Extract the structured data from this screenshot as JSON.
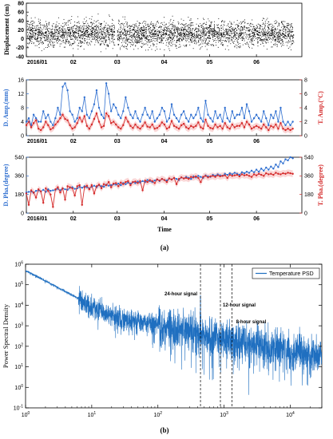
{
  "colors": {
    "blue": "#2f6fd0",
    "red": "#d42a2a",
    "psd": "#1f6fc0",
    "pink": "#f4a6a6"
  },
  "panel_labels": {
    "a": "(a)",
    "b": "(b)"
  },
  "chart_data": [
    {
      "type": "scatter",
      "ylabel": "Displacement (cm)",
      "xlabel": "",
      "ylim": [
        -40,
        80
      ],
      "yticks": [
        "-40",
        "-20",
        "0",
        "20",
        "40",
        "60",
        "80"
      ],
      "xticklabels": [
        "2016/01",
        "02",
        "03",
        "04",
        "05",
        "06"
      ],
      "xlim_days": [
        0,
        182
      ],
      "xtick_days": [
        0,
        31,
        60,
        91,
        121,
        152
      ],
      "series": [
        {
          "mean": 12,
          "spread_min": -40,
          "spread_max": 75,
          "color": "black",
          "n_points": 3500
        }
      ]
    },
    {
      "type": "line",
      "ylabel_left": "D. Amp.(mm)",
      "ylabel_right": "T. Amp.(°C)",
      "ylim_left": [
        0,
        16
      ],
      "ylim_right": [
        0,
        8
      ],
      "yticks_left": [
        "0",
        "4",
        "8",
        "12",
        "16"
      ],
      "yticks_right": [
        "0",
        "2",
        "4",
        "6",
        "8"
      ],
      "xticklabels": [
        "2016/01",
        "02",
        "03",
        "04",
        "05",
        "06"
      ],
      "x_days_range": [
        0,
        176
      ],
      "series": [
        {
          "axis": "left",
          "color": "blue",
          "values": [
            4,
            5,
            3,
            6,
            5,
            4,
            4,
            7,
            5,
            6,
            4,
            3,
            5,
            8,
            6,
            14,
            15,
            13,
            7,
            6,
            4,
            5,
            8,
            7,
            11,
            6,
            5,
            7,
            9,
            13,
            8,
            6,
            5,
            15,
            12,
            7,
            9,
            8,
            6,
            5,
            7,
            11,
            8,
            6,
            5,
            7,
            5,
            4,
            6,
            8,
            6,
            5,
            7,
            4,
            5,
            6,
            8,
            7,
            4,
            5,
            9,
            6,
            5,
            4,
            6,
            7,
            5,
            4,
            6,
            5,
            6,
            8,
            5,
            4,
            10,
            6,
            5,
            4,
            7,
            5,
            6,
            4,
            8,
            5,
            4,
            7,
            5,
            6,
            6,
            8,
            5,
            9,
            7,
            4,
            5,
            6,
            5,
            4,
            7,
            5,
            3,
            6,
            5,
            7,
            4,
            8,
            4,
            3,
            4,
            3,
            4
          ]
        },
        {
          "axis": "right",
          "color": "red",
          "values": [
            1.5,
            2,
            1.2,
            1.8,
            2.2,
            1,
            0.8,
            1.2,
            2,
            1.5,
            0.9,
            1.1,
            1.6,
            2,
            2.5,
            3,
            2.4,
            2.2,
            1.5,
            1,
            1.2,
            1.8,
            2.6,
            2,
            2.8,
            1.4,
            1,
            1.6,
            2.4,
            3.2,
            2,
            1.2,
            1.4,
            3.2,
            2.8,
            1.8,
            2,
            1.6,
            1.2,
            1,
            1.5,
            2.6,
            2,
            1.4,
            1.1,
            1.6,
            1.2,
            1,
            1.4,
            1.9,
            1.3,
            1.2,
            1.6,
            1,
            1.1,
            1.4,
            1.9,
            1.6,
            1,
            1.2,
            2.1,
            1.4,
            1.2,
            1,
            1.5,
            1.7,
            1.2,
            1,
            1.4,
            1.2,
            1.4,
            1.9,
            1.2,
            1,
            2.3,
            1.4,
            1.1,
            1,
            1.6,
            1.2,
            1.4,
            1,
            1.8,
            1.2,
            1,
            1.6,
            1.2,
            1.4,
            1.4,
            1.8,
            1.2,
            2,
            1.6,
            1,
            1.2,
            1.4,
            1.2,
            1,
            1.6,
            1.2,
            0.8,
            1.4,
            1.2,
            1.6,
            1,
            1.8,
            1,
            0.8,
            1,
            0.8,
            1
          ]
        }
      ]
    },
    {
      "type": "line",
      "ylabel_left": "D. Pha.(degree)",
      "ylabel_right": "T. Pha.(degree)",
      "xlabel": "Time",
      "ylim_left": [
        0,
        540
      ],
      "ylim_right": [
        0,
        540
      ],
      "yticks_left": [
        "0",
        "180",
        "360",
        "540"
      ],
      "yticks_right": [
        "0",
        "180",
        "360",
        "540"
      ],
      "xticklabels": [
        "2016/01",
        "02",
        "03",
        "04",
        "05",
        "06"
      ],
      "x_days_range": [
        0,
        176
      ],
      "series": [
        {
          "axis": "left",
          "color": "blue",
          "values": [
            200,
            205,
            210,
            195,
            215,
            220,
            210,
            225,
            205,
            230,
            215,
            220,
            225,
            235,
            220,
            240,
            230,
            225,
            245,
            250,
            235,
            240,
            255,
            245,
            260,
            250,
            240,
            255,
            265,
            250,
            270,
            260,
            255,
            275,
            265,
            270,
            280,
            275,
            285,
            270,
            290,
            280,
            295,
            285,
            300,
            290,
            305,
            295,
            310,
            300,
            320,
            310,
            300,
            315,
            325,
            310,
            330,
            320,
            315,
            335,
            325,
            340,
            330,
            320,
            345,
            335,
            350,
            340,
            330,
            355,
            345,
            360,
            350,
            340,
            365,
            355,
            350,
            370,
            360,
            375,
            365,
            360,
            380,
            370,
            385,
            375,
            390,
            380,
            370,
            395,
            385,
            400,
            390,
            410,
            395,
            420,
            400,
            430,
            410,
            440,
            420,
            450,
            430,
            470,
            445,
            500,
            480,
            520,
            510,
            540,
            530
          ]
        },
        {
          "axis": "right",
          "color": "red",
          "values": [
            190,
            80,
            220,
            200,
            150,
            230,
            210,
            100,
            240,
            215,
            180,
            60,
            230,
            250,
            200,
            240,
            130,
            260,
            250,
            240,
            170,
            260,
            270,
            80,
            250,
            265,
            230,
            270,
            190,
            260,
            275,
            240,
            280,
            270,
            300,
            250,
            285,
            290,
            260,
            295,
            280,
            300,
            310,
            270,
            300,
            305,
            290,
            310,
            220,
            315,
            300,
            320,
            310,
            290,
            325,
            315,
            330,
            320,
            300,
            335,
            325,
            340,
            280,
            330,
            345,
            335,
            340,
            330,
            350,
            345,
            355,
            340,
            300,
            350,
            360,
            345,
            355,
            360,
            350,
            365,
            355,
            360,
            365,
            340,
            370,
            360,
            365,
            370,
            355,
            375,
            365,
            370,
            360,
            350,
            375,
            365,
            380,
            370,
            360,
            385,
            375,
            380,
            370,
            390,
            380,
            375,
            385,
            380,
            390,
            385,
            380
          ]
        }
      ]
    },
    {
      "type": "line",
      "xlabel": "",
      "ylabel": "Power Spectral Density",
      "xscale": "log",
      "yscale": "log",
      "xlim": [
        1,
        30000
      ],
      "ylim": [
        0.1,
        1000000
      ],
      "xticks": [
        "10^0",
        "10^1",
        "10^2",
        "10^3",
        "10^4"
      ],
      "yticks": [
        "10^-1",
        "10^0",
        "10^1",
        "10^2",
        "10^3",
        "10^4",
        "10^5",
        "10^6"
      ],
      "legend": {
        "label": "Temperature PSD",
        "position": "top-right"
      },
      "vlines": [
        {
          "x": 440,
          "label": "24-hour signal"
        },
        {
          "x": 880,
          "label": "12-hour signal"
        },
        {
          "x": 1320,
          "label": "8-hour signal"
        }
      ],
      "trend": {
        "start": {
          "x": 1,
          "y": 500000
        },
        "knee": {
          "x": 20,
          "y": 3000
        },
        "end": {
          "x": 30000,
          "y": 30
        }
      }
    }
  ]
}
